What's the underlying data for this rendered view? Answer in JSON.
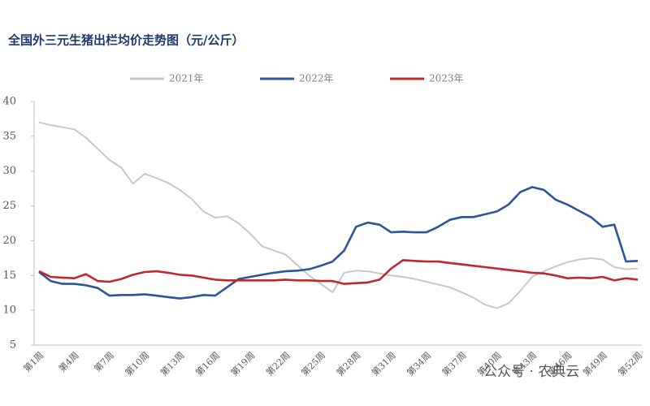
{
  "chart_data": {
    "type": "line",
    "title": "全国外三元生猪出栏均价走势图（元/公斤）",
    "categories": [
      "第1周",
      null,
      null,
      "第4周",
      null,
      null,
      "第7周",
      null,
      null,
      "第10周",
      null,
      null,
      "第13周",
      null,
      null,
      "第16周",
      null,
      null,
      "第19周",
      null,
      null,
      "第22周",
      null,
      null,
      "第25周",
      null,
      null,
      "第28周",
      null,
      null,
      "第31周",
      null,
      null,
      "第34周",
      null,
      null,
      "第37周",
      null,
      null,
      "第40周",
      null,
      null,
      "第43周",
      null,
      null,
      "第46周",
      null,
      null,
      "第49周",
      null,
      null,
      "第52周"
    ],
    "series": [
      {
        "name": "2021年",
        "color": "#c8c8c8",
        "values": [
          37,
          36.6,
          36.3,
          36,
          34.8,
          33.2,
          31.6,
          30.5,
          28.2,
          29.6,
          29,
          28.3,
          27.3,
          26,
          24.2,
          23.3,
          23.5,
          22.5,
          21,
          19.2,
          18.6,
          18,
          16.5,
          15,
          13.8,
          12.6,
          15.4,
          15.7,
          15.6,
          15.3,
          15,
          14.8,
          14.5,
          14.1,
          13.7,
          13.3,
          12.6,
          11.8,
          10.8,
          10.3,
          11,
          12.8,
          14.8,
          15.6,
          16.3,
          16.9,
          17.3,
          17.5,
          17.3,
          16.2,
          15.9,
          16
        ]
      },
      {
        "name": "2022年",
        "color": "#2e5597",
        "values": [
          15.5,
          14.2,
          13.8,
          13.8,
          13.6,
          13.2,
          12.1,
          12.2,
          12.2,
          12.3,
          12.1,
          11.9,
          11.7,
          11.9,
          12.2,
          12.1,
          13.3,
          14.5,
          14.8,
          15.1,
          15.4,
          15.6,
          15.7,
          15.9,
          16.4,
          17,
          18.6,
          22,
          22.6,
          22.3,
          21.2,
          21.3,
          21.2,
          21.2,
          22,
          23,
          23.4,
          23.4,
          23.8,
          24.2,
          25.2,
          27,
          27.7,
          27.3,
          25.9,
          25.2,
          24.3,
          23.4,
          22,
          22.3,
          17,
          17.1
        ]
      },
      {
        "name": "2023年",
        "color": "#c0282d",
        "values": [
          15.6,
          14.8,
          14.7,
          14.6,
          15.2,
          14.2,
          14.1,
          14.5,
          15.1,
          15.5,
          15.6,
          15.4,
          15.1,
          15,
          14.7,
          14.4,
          14.3,
          14.3,
          14.3,
          14.3,
          14.3,
          14.4,
          14.3,
          14.3,
          14.2,
          14.2,
          13.8,
          13.9,
          14,
          14.4,
          16,
          17.2,
          17.1,
          17,
          17,
          16.8,
          16.6,
          16.4,
          16.2,
          16,
          15.8,
          15.6,
          15.4,
          15.3,
          15,
          14.6,
          14.7,
          14.6,
          14.8,
          14.3,
          14.6,
          14.4
        ]
      }
    ],
    "ylim": [
      5,
      40
    ],
    "yticks": [
      5,
      10,
      15,
      20,
      25,
      30,
      35,
      40
    ],
    "grid": false,
    "legend": "top",
    "watermark": "公众号 · 农典云"
  }
}
